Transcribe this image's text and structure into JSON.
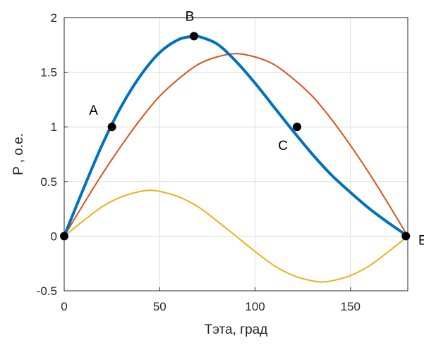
{
  "chart_data": {
    "type": "line",
    "title": "",
    "xlabel": "Тэта, град",
    "ylabel": "P , о.е.",
    "xlim": [
      0,
      180
    ],
    "ylim": [
      -0.5,
      2
    ],
    "xticks": [
      "0",
      "50",
      "100",
      "150"
    ],
    "yticks": [
      "-0.5",
      "0",
      "0.5",
      "1",
      "1.5",
      "2"
    ],
    "grid": true,
    "legend": "none",
    "series": [
      {
        "color": "#0072BD",
        "line_width": "thick",
        "x": [
          0,
          10,
          20,
          30,
          40,
          50,
          60,
          68,
          70,
          80,
          90,
          100,
          110,
          120,
          130,
          140,
          150,
          160,
          170,
          180
        ],
        "y": [
          0,
          0.43,
          0.84,
          1.19,
          1.47,
          1.68,
          1.8,
          1.83,
          1.83,
          1.76,
          1.6,
          1.4,
          1.18,
          0.96,
          0.75,
          0.56,
          0.4,
          0.25,
          0.12,
          0
        ]
      },
      {
        "color": "#D95319",
        "line_width": "thin",
        "x": [
          0,
          10,
          20,
          30,
          40,
          50,
          60,
          70,
          80,
          90,
          100,
          110,
          120,
          130,
          140,
          150,
          160,
          170,
          180
        ],
        "y": [
          0,
          0.29,
          0.57,
          0.83,
          1.07,
          1.28,
          1.44,
          1.57,
          1.64,
          1.67,
          1.64,
          1.57,
          1.44,
          1.28,
          1.07,
          0.83,
          0.57,
          0.29,
          0
        ]
      },
      {
        "color": "#EDB120",
        "line_width": "thin",
        "x": [
          0,
          10,
          20,
          30,
          40,
          45,
          50,
          60,
          70,
          80,
          90,
          100,
          110,
          120,
          130,
          135,
          140,
          150,
          160,
          170,
          180
        ],
        "y": [
          0,
          0.14,
          0.27,
          0.36,
          0.41,
          0.42,
          0.41,
          0.36,
          0.27,
          0.14,
          0,
          -0.14,
          -0.27,
          -0.36,
          -0.41,
          -0.42,
          -0.41,
          -0.36,
          -0.27,
          -0.14,
          0
        ]
      }
    ],
    "markers": [
      {
        "label": "",
        "x": 0,
        "y": 0
      },
      {
        "label": "A",
        "x": 25,
        "y": 1.0
      },
      {
        "label": "B",
        "x": 68,
        "y": 1.83
      },
      {
        "label": "C",
        "x": 122,
        "y": 1.0
      },
      {
        "label": "E",
        "x": 179,
        "y": 0
      }
    ]
  }
}
